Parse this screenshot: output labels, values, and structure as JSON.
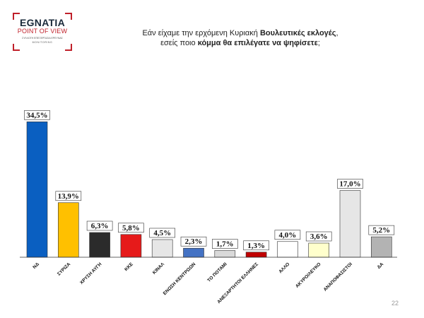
{
  "logo": {
    "name": "EGNATIA",
    "sub": "POINT OF VIEW",
    "tagline": "ΣΥΛΛΟΓΗ ΕΠΕΞΕΡΓΑΣΙΑ ΕΡΕΥΝΑΣ",
    "tagline2": "MONITORING"
  },
  "title": {
    "line1_a": "Εάν είχαμε την ερχόμενη Κυριακή ",
    "line1_b": "Βουλευτικές εκλογές",
    "line1_c": ",",
    "line2_a": "εσείς ποιο ",
    "line2_b": "κόμμα θα επιλέγατε να ψηφίσετε",
    "line2_c": ";"
  },
  "page_number": "22",
  "chart_data": {
    "type": "bar",
    "categories": [
      "ΝΔ",
      "ΣΥΡΙΖΑ",
      "ΧΡΥΣΗ ΑΥΓΗ",
      "ΚΚΕ",
      "ΚΙΝΑΛ",
      "ΕΝΩΣΗ ΚΕΝΤΡΩΩΝ",
      "ΤΟ ΠΟΤΑΜΙ",
      "ΑΝΕΞΑΡΤΗΤΟΙ ΕΛΛΗΝΕΣ",
      "ΑΛΛΟ",
      "ΑΚΥΡΟ/ΛΕΥΚΟ",
      "ΑΝΑΠΟΦΑΣΙΣΤΟΙ",
      "ΔΑ"
    ],
    "values": [
      34.5,
      13.9,
      6.3,
      5.8,
      4.5,
      2.3,
      1.7,
      1.3,
      4.0,
      3.6,
      17.0,
      5.2
    ],
    "value_labels": [
      "34,5%",
      "13,9%",
      "6,3%",
      "5,8%",
      "4,5%",
      "2,3%",
      "1,7%",
      "1,3%",
      "4,0%",
      "3,6%",
      "17,0%",
      "5,2%"
    ],
    "colors": [
      "#0a5fc1",
      "#ffc000",
      "#2b2b2b",
      "#e61a1a",
      "#e6e6e6",
      "#4472c4",
      "#d9d9d9",
      "#c00000",
      "#ffffff",
      "#ffffcc",
      "#e6e6e6",
      "#b3b3b3"
    ],
    "ylim": [
      0,
      36
    ],
    "grid": false,
    "legend": "none"
  }
}
